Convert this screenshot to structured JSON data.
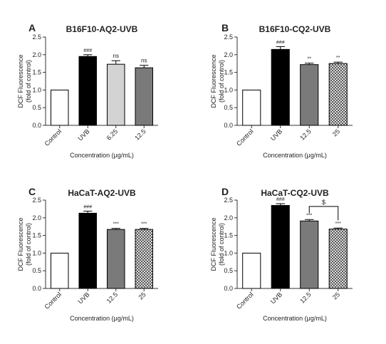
{
  "figure": {
    "panels": [
      {
        "letter": "A"
      },
      {
        "letter": "B"
      },
      {
        "letter": "C"
      },
      {
        "letter": "D"
      }
    ]
  },
  "colors": {
    "axis": "#333333",
    "control_bar": "#ffffff",
    "uvb_bar": "#000000",
    "light_gray_bar": "#d3d3d3",
    "gray_bar": "#7a7a7a",
    "checker_dark": "#5a5a5a",
    "checker_light": "#dcdcdc"
  },
  "chart_data": [
    {
      "type": "bar",
      "title": "B16F10-AQ2-UVB",
      "xlabel": "Concentration (μg/mL)",
      "ylabel_line1": "DCF Fluorescence",
      "ylabel_line2": "(fold of control)",
      "ylim": [
        0,
        2.5
      ],
      "yticks": [
        "0.0",
        "0.5",
        "1.0",
        "1.5",
        "2.0",
        "2.5"
      ],
      "categories": [
        "Control",
        "UVB",
        "6.25",
        "12.5"
      ],
      "values": [
        1.0,
        1.95,
        1.73,
        1.63
      ],
      "errors": [
        0.0,
        0.05,
        0.1,
        0.07
      ],
      "fills": [
        "white",
        "black",
        "lightgray",
        "gray"
      ],
      "annotations": [
        "",
        "###",
        "ns",
        "ns"
      ]
    },
    {
      "type": "bar",
      "title": "B16F10-CQ2-UVB",
      "xlabel": "Concentration (μg/mL)",
      "ylabel_line1": "DCF Fluorescence",
      "ylabel_line2": "(fold of control)",
      "ylim": [
        0,
        2.5
      ],
      "yticks": [
        "0.0",
        "0.5",
        "1.0",
        "1.5",
        "2.0",
        "2.5"
      ],
      "categories": [
        "Control",
        "UVB",
        "12.5",
        "25"
      ],
      "values": [
        1.0,
        2.15,
        1.72,
        1.75
      ],
      "errors": [
        0.0,
        0.08,
        0.04,
        0.04
      ],
      "fills": [
        "white",
        "black",
        "gray",
        "checker"
      ],
      "annotations": [
        "",
        "###",
        "**",
        "**"
      ]
    },
    {
      "type": "bar",
      "title": "HaCaT-AQ2-UVB",
      "xlabel": "Concentration (μg/mL)",
      "ylabel_line1": "DCF Fluorescence",
      "ylabel_line2": "(fold of control)",
      "ylim": [
        0,
        2.5
      ],
      "yticks": [
        "0.0",
        "0.5",
        "1.0",
        "1.5",
        "2.0",
        "2.5"
      ],
      "categories": [
        "Control",
        "UVB",
        "12.5",
        "25"
      ],
      "values": [
        1.0,
        2.13,
        1.67,
        1.67
      ],
      "errors": [
        0.0,
        0.06,
        0.03,
        0.03
      ],
      "fills": [
        "white",
        "black",
        "gray",
        "checker"
      ],
      "annotations": [
        "",
        "###",
        "***",
        "***"
      ]
    },
    {
      "type": "bar",
      "title": "HaCaT-CQ2-UVB",
      "xlabel": "Concentration (μg/mL)",
      "ylabel_line1": "DCF Fluorescence",
      "ylabel_line2": "(fold of control)",
      "ylim": [
        0,
        2.5
      ],
      "yticks": [
        "0.0",
        "0.5",
        "1.0",
        "1.5",
        "2.0",
        "2.5"
      ],
      "categories": [
        "Control",
        "UVB",
        "12.5",
        "25"
      ],
      "values": [
        1.0,
        2.35,
        1.91,
        1.68
      ],
      "errors": [
        0.0,
        0.05,
        0.04,
        0.03
      ],
      "fills": [
        "white",
        "black",
        "gray",
        "checker"
      ],
      "annotations": [
        "",
        "###",
        "***",
        "***"
      ],
      "bracket": {
        "from": 2,
        "to": 3,
        "label": "$"
      }
    }
  ]
}
